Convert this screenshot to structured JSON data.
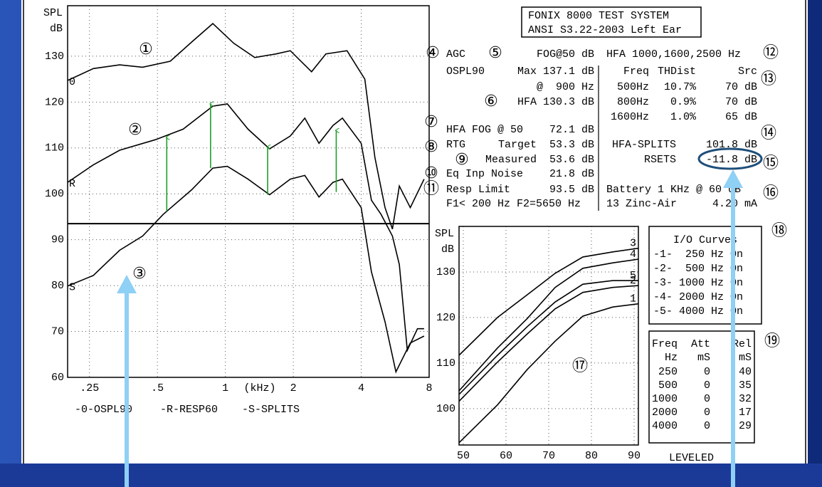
{
  "header": {
    "lines": [
      "FONIX 8000 TEST SYSTEM",
      "ANSI S3.22-2003 Left Ear"
    ]
  },
  "chart_data": [
    {
      "type": "line",
      "y_label": "SPL",
      "y_unit": "dB",
      "x_label": "(kHz)",
      "log_x": true,
      "xlim": [
        0.2,
        8
      ],
      "ylim": [
        60,
        141
      ],
      "xticks": [
        {
          "value": 0.25,
          "label": ".25"
        },
        {
          "value": 0.5,
          "label": ".5"
        },
        1,
        2,
        4,
        8
      ],
      "yticks": [
        60,
        70,
        80,
        90,
        100,
        110,
        120,
        130
      ],
      "grid": true,
      "reference_line": 93.5,
      "series": [
        {
          "name": "-0-OSPL90",
          "marker": "0",
          "color": "#000000",
          "x": [
            0.2,
            0.26,
            0.34,
            0.43,
            0.57,
            0.71,
            0.88,
            1.09,
            1.35,
            1.68,
            1.94,
            2.41,
            2.79,
            3.46,
            4.15,
            4.6,
            5.1,
            5.5,
            5.9,
            6.6,
            7.6
          ],
          "values": [
            124.7,
            127.3,
            128.1,
            127.6,
            128.9,
            133.1,
            137.1,
            132.8,
            129.7,
            130.5,
            131.2,
            126.6,
            130.5,
            131.2,
            125,
            107.9,
            97,
            92.3,
            101.7,
            97,
            103.2
          ]
        },
        {
          "name": "-R-RESP60",
          "marker": "R",
          "color": "#000000",
          "x": [
            0.2,
            0.26,
            0.34,
            0.49,
            0.65,
            0.88,
            1.02,
            1.26,
            1.57,
            1.94,
            2.25,
            2.6,
            3.0,
            3.3,
            4.0,
            4.44,
            4.9,
            5.5,
            5.9,
            6.4,
            7.1,
            7.6
          ],
          "values": [
            102.5,
            106.3,
            109.5,
            111.8,
            114.1,
            119.1,
            119.6,
            114.1,
            109.8,
            112.6,
            116.5,
            111,
            114.9,
            116.5,
            111,
            98.6,
            95.5,
            90.8,
            84.6,
            65.9,
            70.6,
            70.6
          ]
        },
        {
          "name": "-S-SPLITS",
          "marker": "S",
          "color": "#000000",
          "x": [
            0.2,
            0.26,
            0.34,
            0.43,
            0.53,
            0.71,
            0.88,
            1.02,
            1.26,
            1.57,
            1.94,
            2.25,
            2.6,
            3.0,
            3.3,
            4.0,
            4.44,
            5.1,
            5.7,
            6.6,
            7.6
          ],
          "values": [
            79.9,
            82.2,
            87.7,
            90.8,
            95.5,
            100.9,
            105.6,
            106,
            103.2,
            99.8,
            103.2,
            104,
            99.3,
            102.5,
            103.2,
            97,
            83,
            72.1,
            61.2,
            67.5,
            69
          ]
        }
      ],
      "arrows": [
        {
          "x": 0.55,
          "from": 96.2,
          "to": 112.3
        },
        {
          "x": 0.86,
          "from": 105.6,
          "to": 119.6
        },
        {
          "x": 1.54,
          "from": 99.8,
          "to": 110.2
        },
        {
          "x": 3.1,
          "from": 100.4,
          "to": 113.8
        }
      ],
      "arrow_color": "#1e9e2a"
    },
    {
      "type": "line",
      "y_label": "SPL",
      "y_unit": "dB",
      "legend_title": "I/O Curves",
      "xlim": [
        49,
        91
      ],
      "ylim": [
        92,
        140
      ],
      "xticks": [
        50,
        60,
        70,
        80,
        90
      ],
      "yticks": [
        100,
        110,
        120,
        130
      ],
      "grid": true,
      "x": [
        49,
        58,
        65,
        71.5,
        78,
        85,
        91
      ],
      "series": [
        {
          "name": "-1-  250 Hz On",
          "marker": "1",
          "color": "#000000",
          "values": [
            92.5,
            100.8,
            108.6,
            114.8,
            120.3,
            122.3,
            123
          ]
        },
        {
          "name": "-2-  500 Hz On",
          "marker": "2",
          "color": "#000000",
          "values": [
            101.6,
            110.2,
            116.4,
            121.9,
            125.5,
            126.6,
            127
          ]
        },
        {
          "name": "-3- 1000 Hz On",
          "marker": "3",
          "color": "#000000",
          "values": [
            111.7,
            120,
            125,
            129.7,
            133.3,
            134.4,
            135.2
          ]
        },
        {
          "name": "-4- 2000 Hz On",
          "marker": "4",
          "color": "#000000",
          "values": [
            103.9,
            113.3,
            119.8,
            126.6,
            130.8,
            132,
            132.8
          ]
        },
        {
          "name": "-5- 4000 Hz On",
          "marker": "5",
          "color": "#000000",
          "values": [
            103.1,
            111.7,
            118,
            123.4,
            127.3,
            128.1,
            128.1
          ]
        }
      ]
    }
  ],
  "left_block": [
    {
      "label": "AGC",
      "value": "FOG@50 dB"
    },
    {
      "label": "OSPL90",
      "value": "Max 137.1 dB"
    },
    {
      "value": "@  900 Hz"
    },
    {
      "value": "HFA 130.3 dB"
    },
    {
      "label": "HFA FOG @ 50",
      "value": "72.1 dB"
    },
    {
      "label": "RTG",
      "value": "Target  53.3 dB"
    },
    {
      "value": "Measured  53.6 dB"
    },
    {
      "label": "Eq Inp Noise",
      "value": "21.8 dB"
    },
    {
      "label": "Resp Limit",
      "value": "93.5 dB"
    },
    {
      "label": "F1< 200 Hz F2=5650 Hz"
    }
  ],
  "right_block": [
    [
      "HFA 1000,1600,2500 Hz"
    ],
    [
      "Freq",
      "THDist",
      "Src"
    ],
    [
      "500Hz",
      "10.7%",
      "70 dB"
    ],
    [
      "800Hz",
      "0.9%",
      "70 dB"
    ],
    [
      "1600Hz",
      "1.0%",
      "65 dB"
    ],
    [
      "HFA-SPLITS",
      "101.8 dB"
    ],
    [
      "RSETS",
      "-11.8 dB"
    ],
    [
      "Battery 1 KHz @ 60 dB"
    ],
    [
      "13 Zinc-Air",
      "4.20 mA"
    ]
  ],
  "timing_table": {
    "header": [
      [
        "Freq",
        "Att",
        "Rel"
      ],
      [
        "Hz",
        "mS",
        "mS"
      ]
    ],
    "rows": [
      [
        "250",
        "0",
        "40"
      ],
      [
        "500",
        "0",
        "35"
      ],
      [
        "1000",
        "0",
        "32"
      ],
      [
        "2000",
        "0",
        "17"
      ],
      [
        "4000",
        "0",
        "29"
      ]
    ]
  },
  "footer": "LEVELED",
  "callouts": [
    "①",
    "②",
    "③",
    "④",
    "⑤",
    "⑥",
    "⑦",
    "⑧",
    "⑨",
    "⑩",
    "⑪",
    "⑫",
    "⑬",
    "⑭",
    "⑮",
    "⑯",
    "⑰",
    "⑱",
    "⑲"
  ]
}
